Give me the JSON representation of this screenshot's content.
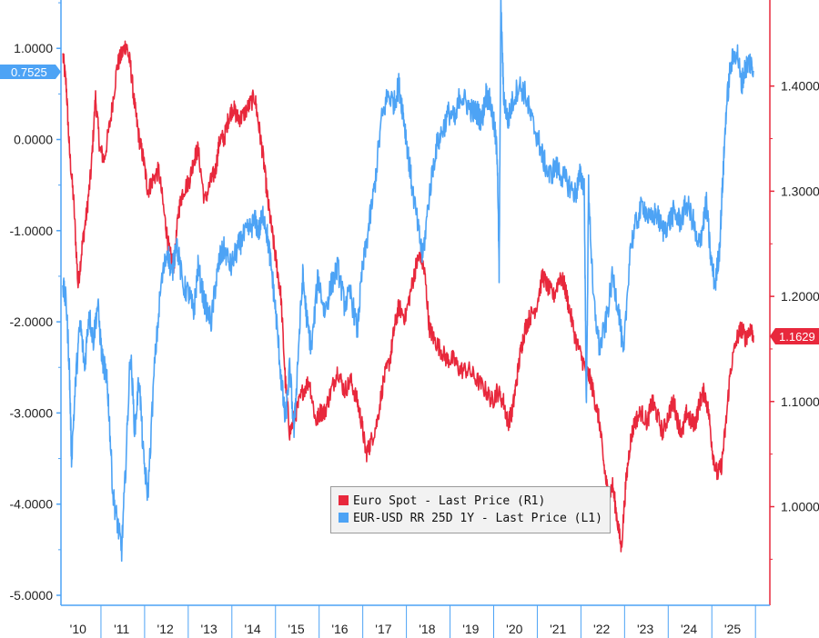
{
  "chart_data": {
    "type": "line",
    "title": "",
    "x_tick_labels": [
      "'10",
      "'11",
      "'12",
      "'13",
      "'14",
      "'15",
      "'16",
      "'17",
      "'18",
      "'19",
      "'20",
      "'21",
      "'22",
      "'23",
      "'24",
      "'25"
    ],
    "x_range": [
      2010.0,
      2025.85
    ],
    "left_axis": {
      "ticks": [
        "1.0000",
        "0.0000",
        "-1.0000",
        "-2.0000",
        "-3.0000",
        "-4.0000",
        "-5.0000"
      ],
      "range": [
        -5.0,
        1.5
      ],
      "color": "#4da3f5"
    },
    "right_axis": {
      "ticks": [
        "1.4000",
        "1.3000",
        "1.2000",
        "1.1000",
        "1.0000"
      ],
      "range": [
        0.915,
        1.49
      ],
      "color": "#e8283c"
    },
    "grid": false,
    "legend_position": "bottom-center",
    "legend": [
      {
        "label": "Euro Spot - Last Price (R1)",
        "color": "#e8283c"
      },
      {
        "label": "EUR-USD RR 25D 1Y - Last Price (L1)",
        "color": "#4da3f5"
      }
    ],
    "last_value_tags": {
      "left": "0.7525",
      "right": "1.1629"
    },
    "series": [
      {
        "name": "Euro Spot - Last Price (R1)",
        "axis": "right",
        "color": "#e8283c",
        "x": [
          2010.0,
          2010.08,
          2010.15,
          2010.25,
          2010.35,
          2010.45,
          2010.55,
          2010.65,
          2010.75,
          2010.85,
          2010.95,
          2011.1,
          2011.25,
          2011.35,
          2011.45,
          2011.55,
          2011.65,
          2011.75,
          2011.85,
          2011.95,
          2012.05,
          2012.2,
          2012.35,
          2012.45,
          2012.55,
          2012.65,
          2012.75,
          2012.9,
          2013.0,
          2013.1,
          2013.25,
          2013.4,
          2013.5,
          2013.6,
          2013.7,
          2013.8,
          2013.9,
          2014.0,
          2014.1,
          2014.25,
          2014.4,
          2014.5,
          2014.6,
          2014.7,
          2014.8,
          2014.9,
          2015.0,
          2015.1,
          2015.2,
          2015.35,
          2015.5,
          2015.65,
          2015.8,
          2015.9,
          2016.0,
          2016.15,
          2016.3,
          2016.45,
          2016.6,
          2016.75,
          2016.85,
          2016.95,
          2017.05,
          2017.2,
          2017.35,
          2017.5,
          2017.6,
          2017.7,
          2017.85,
          2018.0,
          2018.1,
          2018.2,
          2018.3,
          2018.4,
          2018.5,
          2018.65,
          2018.8,
          2018.95,
          2019.1,
          2019.3,
          2019.5,
          2019.7,
          2019.85,
          2019.95,
          2020.1,
          2020.2,
          2020.3,
          2020.4,
          2020.5,
          2020.6,
          2020.7,
          2020.85,
          2021.0,
          2021.1,
          2021.25,
          2021.4,
          2021.5,
          2021.6,
          2021.75,
          2021.9,
          2022.0,
          2022.1,
          2022.2,
          2022.3,
          2022.4,
          2022.5,
          2022.6,
          2022.7,
          2022.8,
          2022.9,
          2023.0,
          2023.1,
          2023.25,
          2023.4,
          2023.5,
          2023.6,
          2023.75,
          2023.9,
          2024.0,
          2024.1,
          2024.2,
          2024.3,
          2024.4,
          2024.5,
          2024.6,
          2024.7,
          2024.8,
          2024.9,
          2025.0,
          2025.1,
          2025.2,
          2025.3,
          2025.45,
          2025.55,
          2025.65,
          2025.75,
          2025.83
        ],
        "y": [
          1.43,
          1.4,
          1.34,
          1.29,
          1.21,
          1.25,
          1.28,
          1.32,
          1.39,
          1.34,
          1.33,
          1.37,
          1.42,
          1.43,
          1.44,
          1.42,
          1.38,
          1.35,
          1.33,
          1.3,
          1.31,
          1.32,
          1.27,
          1.24,
          1.23,
          1.28,
          1.3,
          1.31,
          1.33,
          1.34,
          1.29,
          1.31,
          1.32,
          1.35,
          1.35,
          1.37,
          1.38,
          1.37,
          1.37,
          1.38,
          1.39,
          1.36,
          1.33,
          1.29,
          1.26,
          1.23,
          1.2,
          1.12,
          1.07,
          1.09,
          1.11,
          1.12,
          1.08,
          1.09,
          1.09,
          1.11,
          1.13,
          1.11,
          1.12,
          1.1,
          1.08,
          1.05,
          1.06,
          1.08,
          1.12,
          1.14,
          1.17,
          1.19,
          1.18,
          1.21,
          1.23,
          1.24,
          1.22,
          1.17,
          1.16,
          1.15,
          1.14,
          1.14,
          1.13,
          1.13,
          1.12,
          1.11,
          1.1,
          1.11,
          1.1,
          1.08,
          1.09,
          1.12,
          1.15,
          1.17,
          1.18,
          1.19,
          1.22,
          1.21,
          1.2,
          1.22,
          1.21,
          1.19,
          1.16,
          1.14,
          1.13,
          1.12,
          1.1,
          1.08,
          1.04,
          1.01,
          1.02,
          0.99,
          0.96,
          1.02,
          1.06,
          1.08,
          1.09,
          1.08,
          1.1,
          1.09,
          1.07,
          1.09,
          1.1,
          1.08,
          1.07,
          1.09,
          1.08,
          1.08,
          1.1,
          1.11,
          1.09,
          1.05,
          1.03,
          1.04,
          1.08,
          1.13,
          1.16,
          1.17,
          1.16,
          1.17,
          1.163
        ]
      },
      {
        "name": "EUR-USD RR 25D 1Y - Last Price (L1)",
        "axis": "left",
        "color": "#4da3f5",
        "x": [
          2010.0,
          2010.08,
          2010.15,
          2010.2,
          2010.3,
          2010.4,
          2010.5,
          2010.6,
          2010.7,
          2010.8,
          2010.9,
          2011.0,
          2011.05,
          2011.15,
          2011.25,
          2011.35,
          2011.45,
          2011.55,
          2011.65,
          2011.75,
          2011.85,
          2011.95,
          2012.1,
          2012.25,
          2012.4,
          2012.5,
          2012.6,
          2012.75,
          2012.9,
          2013.0,
          2013.1,
          2013.25,
          2013.4,
          2013.5,
          2013.6,
          2013.7,
          2013.85,
          2014.0,
          2014.1,
          2014.25,
          2014.4,
          2014.5,
          2014.6,
          2014.7,
          2014.8,
          2014.9,
          2015.0,
          2015.1,
          2015.2,
          2015.3,
          2015.4,
          2015.5,
          2015.6,
          2015.7,
          2015.85,
          2016.0,
          2016.15,
          2016.3,
          2016.45,
          2016.6,
          2016.75,
          2016.85,
          2017.0,
          2017.15,
          2017.3,
          2017.45,
          2017.6,
          2017.7,
          2017.8,
          2017.9,
          2018.0,
          2018.15,
          2018.25,
          2018.4,
          2018.55,
          2018.7,
          2018.85,
          2019.0,
          2019.1,
          2019.25,
          2019.4,
          2019.5,
          2019.6,
          2019.7,
          2019.8,
          2019.9,
          2019.96,
          2020.0,
          2020.04,
          2020.1,
          2020.2,
          2020.3,
          2020.45,
          2020.6,
          2020.75,
          2020.9,
          2021.0,
          2021.15,
          2021.3,
          2021.45,
          2021.6,
          2021.75,
          2021.85,
          2021.95,
          2022.0,
          2022.05,
          2022.15,
          2022.3,
          2022.45,
          2022.6,
          2022.75,
          2022.85,
          2023.0,
          2023.15,
          2023.3,
          2023.45,
          2023.6,
          2023.75,
          2023.9,
          2024.0,
          2024.15,
          2024.3,
          2024.45,
          2024.55,
          2024.65,
          2024.75,
          2024.85,
          2024.95,
          2025.05,
          2025.12,
          2025.2,
          2025.3,
          2025.45,
          2025.55,
          2025.65,
          2025.75,
          2025.83
        ],
        "y": [
          -1.6,
          -1.8,
          -2.5,
          -3.5,
          -2.6,
          -2.0,
          -2.5,
          -1.9,
          -2.2,
          -1.8,
          -2.4,
          -2.6,
          -2.9,
          -3.9,
          -4.2,
          -4.5,
          -3.5,
          -2.3,
          -3.2,
          -2.6,
          -3.5,
          -3.9,
          -2.5,
          -1.6,
          -1.2,
          -1.5,
          -1.1,
          -1.6,
          -1.7,
          -1.9,
          -1.4,
          -1.8,
          -2.0,
          -1.6,
          -1.3,
          -1.2,
          -1.4,
          -1.2,
          -1.1,
          -1.0,
          -0.9,
          -1.0,
          -0.8,
          -1.1,
          -1.5,
          -2.0,
          -2.6,
          -3.1,
          -2.5,
          -3.2,
          -2.3,
          -1.5,
          -2.0,
          -2.3,
          -1.5,
          -1.9,
          -1.6,
          -1.4,
          -1.8,
          -1.7,
          -2.1,
          -1.5,
          -1.0,
          -0.5,
          0.2,
          0.5,
          0.4,
          0.6,
          0.3,
          -0.1,
          -0.5,
          -1.0,
          -1.3,
          -0.6,
          -0.1,
          0.1,
          0.3,
          0.2,
          0.5,
          0.4,
          0.3,
          0.3,
          0.2,
          0.5,
          0.4,
          0.1,
          -0.2,
          -1.5,
          1.5,
          0.5,
          0.2,
          0.4,
          0.6,
          0.5,
          0.2,
          0.0,
          -0.2,
          -0.4,
          -0.3,
          -0.4,
          -0.5,
          -0.6,
          -0.4,
          -0.5,
          -3.0,
          -0.5,
          -1.7,
          -2.3,
          -2.0,
          -1.5,
          -1.9,
          -2.4,
          -1.2,
          -0.9,
          -0.7,
          -0.9,
          -0.8,
          -1.0,
          -0.9,
          -0.8,
          -0.9,
          -0.7,
          -0.9,
          -1.2,
          -1.0,
          -0.7,
          -1.3,
          -1.6,
          -1.2,
          -0.5,
          0.3,
          0.8,
          1.0,
          0.6,
          0.8,
          0.85,
          0.7525
        ]
      }
    ]
  }
}
